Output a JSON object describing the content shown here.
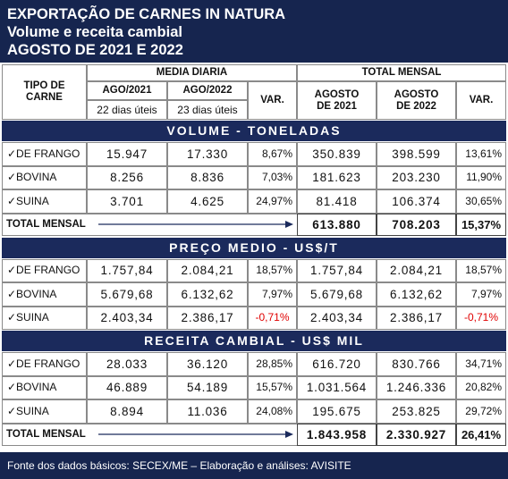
{
  "header": {
    "lines": [
      "EXPORTAÇÃO DE CARNES IN NATURA",
      "Volume e receita cambial",
      "AGOSTO DE 2021 E 2022"
    ]
  },
  "table": {
    "columns": {
      "type": "TIPO DE CARNE",
      "daily": "MEDIA DIARIA",
      "monthly": "TOTAL MENSAL",
      "ago2021": "AGO/2021",
      "ago2022": "AGO/2022",
      "days2021": "22 dias úteis",
      "days2022": "23 dias úteis",
      "var": "VAR.",
      "month2021": "AGOSTO DE 2021",
      "month2022": "AGOSTO DE 2022",
      "var2": "VAR."
    },
    "sections": [
      {
        "title": "VOLUME - TONELADAS",
        "rows": [
          [
            "✓DE FRANGO",
            "15.947",
            "17.330",
            "8,67%",
            "350.839",
            "398.599",
            "13,61%"
          ],
          [
            "✓BOVINA",
            "8.256",
            "8.836",
            "7,03%",
            "181.623",
            "203.230",
            "11,90%"
          ],
          [
            "✓SUINA",
            "3.701",
            "4.625",
            "24,97%",
            "81.418",
            "106.374",
            "30,65%"
          ]
        ],
        "total": {
          "label": "TOTAL MENSAL",
          "values": [
            "613.880",
            "708.203",
            "15,37%"
          ]
        }
      },
      {
        "title": "PREÇO MEDIO - US$/T",
        "rows": [
          [
            "✓DE FRANGO",
            "1.757,84",
            "2.084,21",
            "18,57%",
            "1.757,84",
            "2.084,21",
            "18,57%"
          ],
          [
            "✓BOVINA",
            "5.679,68",
            "6.132,62",
            "7,97%",
            "5.679,68",
            "6.132,62",
            "7,97%"
          ],
          [
            "✓SUINA",
            "2.403,34",
            "2.386,17",
            "-0,71%",
            "2.403,34",
            "2.386,17",
            "-0,71%"
          ]
        ]
      },
      {
        "title": "RECEITA CAMBIAL - US$ MIL",
        "rows": [
          [
            "✓DE FRANGO",
            "28.033",
            "36.120",
            "28,85%",
            "616.720",
            "830.766",
            "34,71%"
          ],
          [
            "✓BOVINA",
            "46.889",
            "54.189",
            "15,57%",
            "1.031.564",
            "1.246.336",
            "20,82%"
          ],
          [
            "✓SUINA",
            "8.894",
            "11.036",
            "24,08%",
            "195.675",
            "253.825",
            "29,72%"
          ]
        ],
        "total": {
          "label": "TOTAL MENSAL",
          "values": [
            "1.843.958",
            "2.330.927",
            "26,41%"
          ]
        }
      }
    ]
  },
  "footer": "Fonte dos dados básicos: SECEX/ME – Elaboração e análises: AVISITE"
}
